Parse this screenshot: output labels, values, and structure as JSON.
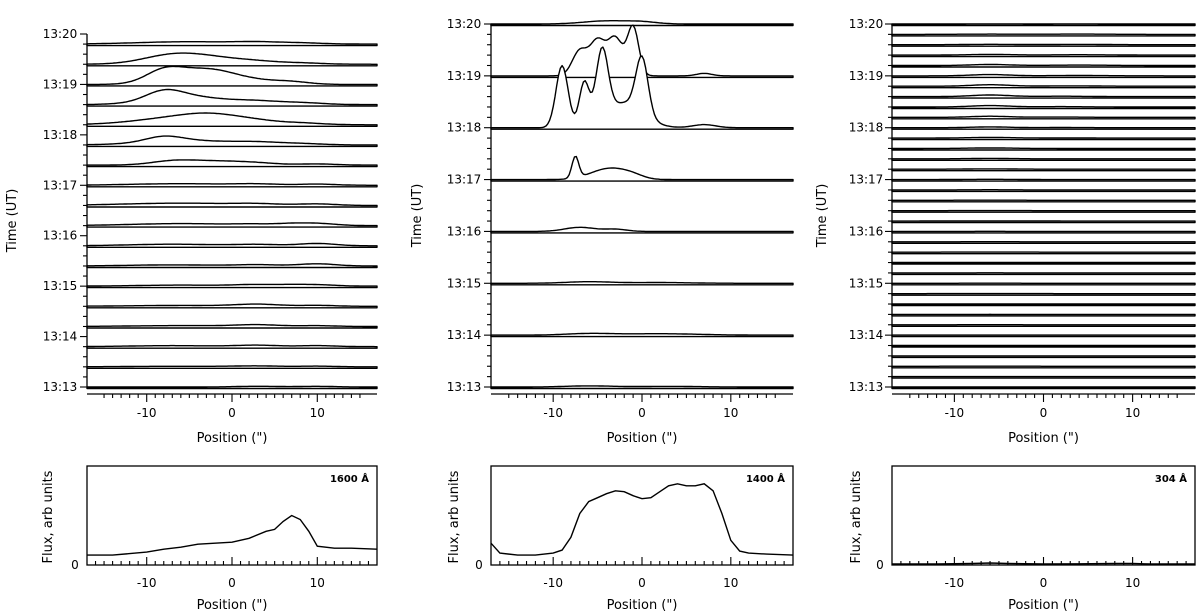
{
  "chart_data": [
    {
      "type": "line",
      "panel": "top-left",
      "ylabel": "Time (UT)",
      "xlabel": "Position (\")",
      "xlim": [
        -17,
        17
      ],
      "x_ticks": [
        "-10",
        "0",
        "10"
      ],
      "y_ticks": [
        "13:13",
        "13:14",
        "13:15",
        "13:16",
        "13:17",
        "13:18",
        "13:19",
        "13:20"
      ],
      "series": [
        {
          "t": 13.0,
          "peaks": [
            [
              3,
              1.0,
              6
            ],
            [
              10,
              0.9,
              5
            ]
          ]
        },
        {
          "t": 13.4,
          "peaks": [
            [
              -6,
              0.8,
              14
            ],
            [
              3,
              1.1,
              6
            ],
            [
              10,
              0.9,
              5
            ]
          ]
        },
        {
          "t": 13.8,
          "peaks": [
            [
              -7,
              1.4,
              12
            ],
            [
              3,
              1.9,
              6
            ],
            [
              10,
              1.4,
              5
            ]
          ]
        },
        {
          "t": 14.2,
          "peaks": [
            [
              -6,
              1.2,
              14
            ],
            [
              3,
              2.2,
              6
            ],
            [
              10,
              1.1,
              5
            ]
          ]
        },
        {
          "t": 14.6,
          "peaks": [
            [
              -6,
              1.2,
              14
            ],
            [
              3,
              2.7,
              6
            ],
            [
              10,
              1.3,
              5
            ]
          ]
        },
        {
          "t": 15.0,
          "peaks": [
            [
              -6,
              1.4,
              12
            ],
            [
              3,
              2.1,
              6
            ],
            [
              7,
              1.2,
              4
            ],
            [
              10,
              1.9,
              5
            ]
          ]
        },
        {
          "t": 15.4,
          "peaks": [
            [
              -7,
              1.5,
              12
            ],
            [
              3,
              1.7,
              6
            ],
            [
              10,
              3.0,
              5
            ]
          ]
        },
        {
          "t": 15.8,
          "peaks": [
            [
              -7,
              2.2,
              12
            ],
            [
              3,
              1.8,
              6
            ],
            [
              10,
              3.2,
              5
            ]
          ]
        },
        {
          "t": 16.2,
          "peaks": [
            [
              -6,
              2.8,
              14
            ],
            [
              3,
              1.6,
              6
            ],
            [
              7,
              1.8,
              4
            ],
            [
              10,
              3.0,
              5
            ]
          ]
        },
        {
          "t": 16.6,
          "peaks": [
            [
              -6,
              3.2,
              16
            ],
            [
              3,
              1.6,
              6
            ],
            [
              10,
              2.0,
              5
            ]
          ]
        },
        {
          "t": 17.0,
          "peaks": [
            [
              -6,
              2.2,
              14
            ],
            [
              3,
              1.5,
              6
            ],
            [
              10,
              1.6,
              5
            ]
          ]
        },
        {
          "t": 17.4,
          "peaks": [
            [
              -7,
              5.0,
              6
            ],
            [
              -2,
              5.2,
              8
            ],
            [
              3,
              2.2,
              6
            ],
            [
              10,
              1.6,
              5
            ]
          ]
        },
        {
          "t": 17.8,
          "peaks": [
            [
              -8,
              7.2,
              5
            ],
            [
              -5,
              6.0,
              12
            ],
            [
              3,
              2.8,
              6
            ],
            [
              8,
              1.8,
              6
            ]
          ]
        },
        {
          "t": 18.2,
          "peaks": [
            [
              -6,
              9.8,
              12
            ],
            [
              -2,
              8.2,
              8
            ],
            [
              3,
              3.2,
              6
            ],
            [
              8,
              2.4,
              6
            ]
          ]
        },
        {
          "t": 18.6,
          "peaks": [
            [
              -8,
              12.0,
              5
            ],
            [
              -5,
              11.0,
              10
            ],
            [
              3,
              3.8,
              6
            ],
            [
              8,
              2.6,
              6
            ]
          ]
        },
        {
          "t": 19.0,
          "peaks": [
            [
              -8,
              15.0,
              5
            ],
            [
              -5,
              9.8,
              8
            ],
            [
              -2,
              13.6,
              7
            ],
            [
              3,
              3.9,
              6
            ],
            [
              7,
              3.4,
              5
            ]
          ]
        },
        {
          "t": 19.4,
          "peaks": [
            [
              -7,
              12.4,
              8
            ],
            [
              -2,
              7.2,
              8
            ],
            [
              3,
              2.9,
              6
            ],
            [
              8,
              1.8,
              6
            ]
          ]
        },
        {
          "t": 19.8,
          "peaks": [
            [
              -5,
              3.3,
              14
            ],
            [
              3,
              2.0,
              6
            ],
            [
              8,
              1.5,
              6
            ]
          ]
        }
      ],
      "flux_panel": {
        "label": "1600 Å",
        "ylabel": "Flux, arb units",
        "xlabel": "Position (\")",
        "y_tick": "0",
        "x_ticks": [
          "-10",
          "0",
          "10"
        ],
        "x": [
          -17,
          -14,
          -10,
          -8,
          -6,
          -4,
          -2,
          0,
          2,
          4,
          5,
          6,
          7,
          8,
          9,
          10,
          12,
          14,
          17
        ],
        "flux": [
          0.1,
          0.1,
          0.13,
          0.16,
          0.18,
          0.21,
          0.22,
          0.23,
          0.27,
          0.34,
          0.36,
          0.44,
          0.5,
          0.46,
          0.34,
          0.19,
          0.17,
          0.17,
          0.16
        ]
      }
    },
    {
      "type": "line",
      "panel": "top-middle",
      "ylabel": "Time (UT)",
      "xlabel": "Position (\")",
      "xlim": [
        -17,
        17
      ],
      "x_ticks": [
        "-10",
        "0",
        "10"
      ],
      "y_ticks": [
        "13:13",
        "13:14",
        "13:15",
        "13:16",
        "13:17",
        "13:18",
        "13:19",
        "13:20"
      ],
      "series": [
        {
          "t": 13.0,
          "peaks": [
            [
              -6,
              1.8,
              6
            ],
            [
              3,
              1.0,
              8
            ]
          ]
        },
        {
          "t": 14.0,
          "peaks": [
            [
              -6,
              2.5,
              6
            ],
            [
              2,
              2.3,
              10
            ]
          ]
        },
        {
          "t": 15.0,
          "peaks": [
            [
              -6,
              2.5,
              6
            ],
            [
              2,
              1.2,
              8
            ]
          ]
        },
        {
          "t": 16.0,
          "peaks": [
            [
              -7,
              6.6,
              4
            ],
            [
              -3,
              3.5,
              3
            ]
          ]
        },
        {
          "t": 17.0,
          "peaks": [
            [
              -7.5,
              35.0,
              0.9
            ],
            [
              -5,
              8.0,
              4
            ],
            [
              -3,
              13.0,
              4
            ],
            [
              -1,
              5.0,
              3
            ]
          ]
        },
        {
          "t": 18.0,
          "peaks": [
            [
              -9,
              100,
              1.6
            ],
            [
              -6.5,
              70,
              1.3
            ],
            [
              -4.5,
              110,
              1.6
            ],
            [
              -2,
              40,
              5
            ],
            [
              0,
              90,
              1.6
            ],
            [
              7,
              5.0,
              3
            ]
          ]
        },
        {
          "t": 19.0,
          "peaks": [
            [
              -7,
              40,
              2
            ],
            [
              -5,
              55,
              2
            ],
            [
              -3,
              60,
              2
            ],
            [
              -1,
              78,
              1.5
            ],
            [
              7,
              4.0,
              2
            ]
          ]
        },
        {
          "t": 20.0,
          "peaks": [
            [
              -4,
              5.0,
              6
            ],
            [
              0,
              3.0,
              4
            ]
          ]
        }
      ],
      "flux_panel": {
        "label": "1400 Å",
        "ylabel": "Flux, arb units",
        "xlabel": "Position (\")",
        "y_tick": "0",
        "x_ticks": [
          "-10",
          "0",
          "10"
        ],
        "x": [
          -17,
          -16,
          -14,
          -12,
          -10,
          -9,
          -8,
          -7,
          -6,
          -5,
          -4,
          -3,
          -2,
          -1,
          0,
          1,
          2,
          3,
          4,
          5,
          6,
          7,
          8,
          9,
          10,
          11,
          12,
          14,
          17
        ],
        "flux": [
          0.22,
          0.12,
          0.1,
          0.1,
          0.12,
          0.15,
          0.28,
          0.52,
          0.64,
          0.68,
          0.72,
          0.75,
          0.74,
          0.7,
          0.67,
          0.68,
          0.74,
          0.8,
          0.82,
          0.8,
          0.8,
          0.82,
          0.75,
          0.52,
          0.25,
          0.14,
          0.12,
          0.11,
          0.1
        ]
      }
    },
    {
      "type": "line",
      "panel": "top-right",
      "ylabel": "Time (UT)",
      "xlabel": "Position (\")",
      "xlim": [
        -17,
        17
      ],
      "x_ticks": [
        "-10",
        "0",
        "10"
      ],
      "y_ticks": [
        "13:13",
        "13:14",
        "13:15",
        "13:16",
        "13:17",
        "13:18",
        "13:19",
        "13:20"
      ],
      "series": [
        {
          "t": 13.0,
          "peaks": [
            [
              -6,
              0.2,
              8
            ]
          ]
        },
        {
          "t": 13.2,
          "peaks": [
            [
              -6,
              0.2,
              8
            ]
          ]
        },
        {
          "t": 13.4,
          "peaks": [
            [
              -6,
              0.3,
              8
            ]
          ]
        },
        {
          "t": 13.6,
          "peaks": [
            [
              -6,
              0.3,
              8
            ]
          ]
        },
        {
          "t": 13.8,
          "peaks": [
            [
              -6,
              0.3,
              8
            ]
          ]
        },
        {
          "t": 14.0,
          "peaks": [
            [
              -6,
              0.4,
              8
            ]
          ]
        },
        {
          "t": 14.2,
          "peaks": [
            [
              -6,
              0.4,
              8
            ]
          ]
        },
        {
          "t": 14.4,
          "peaks": [
            [
              -6,
              0.5,
              8
            ]
          ]
        },
        {
          "t": 14.6,
          "peaks": [
            [
              -6,
              0.5,
              8
            ]
          ]
        },
        {
          "t": 14.8,
          "peaks": [
            [
              -6,
              0.6,
              8
            ]
          ]
        },
        {
          "t": 15.0,
          "peaks": [
            [
              -6,
              0.6,
              8
            ]
          ]
        },
        {
          "t": 15.2,
          "peaks": [
            [
              -6,
              0.7,
              8
            ]
          ]
        },
        {
          "t": 15.4,
          "peaks": [
            [
              -6,
              0.7,
              8
            ]
          ]
        },
        {
          "t": 15.6,
          "peaks": [
            [
              -6,
              0.8,
              8
            ]
          ]
        },
        {
          "t": 15.8,
          "peaks": [
            [
              -6,
              0.8,
              8
            ]
          ]
        },
        {
          "t": 16.0,
          "peaks": [
            [
              -6,
              0.9,
              8
            ]
          ]
        },
        {
          "t": 16.2,
          "peaks": [
            [
              -6,
              1.0,
              8
            ]
          ]
        },
        {
          "t": 16.4,
          "peaks": [
            [
              -6,
              1.3,
              7
            ]
          ]
        },
        {
          "t": 16.6,
          "peaks": [
            [
              -6,
              1.6,
              7
            ]
          ]
        },
        {
          "t": 16.8,
          "peaks": [
            [
              -6,
              2.0,
              7
            ]
          ]
        },
        {
          "t": 17.0,
          "peaks": [
            [
              -6,
              2.6,
              6
            ]
          ]
        },
        {
          "t": 17.2,
          "peaks": [
            [
              -6,
              3.3,
              6
            ]
          ]
        },
        {
          "t": 17.4,
          "peaks": [
            [
              -6,
              4.0,
              6
            ]
          ]
        },
        {
          "t": 17.6,
          "peaks": [
            [
              -6,
              5.0,
              6
            ]
          ]
        },
        {
          "t": 17.8,
          "peaks": [
            [
              -6,
              6.2,
              6
            ],
            [
              2,
              1.2,
              6
            ]
          ]
        },
        {
          "t": 18.0,
          "peaks": [
            [
              -6,
              8.0,
              5
            ],
            [
              2,
              1.8,
              6
            ]
          ]
        },
        {
          "t": 18.2,
          "peaks": [
            [
              -6,
              11.0,
              5
            ],
            [
              2,
              2.6,
              6
            ]
          ]
        },
        {
          "t": 18.4,
          "peaks": [
            [
              -6,
              14.0,
              5
            ],
            [
              2,
              3.3,
              6
            ]
          ]
        },
        {
          "t": 18.6,
          "peaks": [
            [
              -6,
              16.0,
              5
            ],
            [
              2,
              3.8,
              6
            ]
          ]
        },
        {
          "t": 18.8,
          "peaks": [
            [
              -6,
              15.0,
              5
            ],
            [
              3,
              3.6,
              7
            ]
          ]
        },
        {
          "t": 19.0,
          "peaks": [
            [
              -6,
              13.0,
              5
            ],
            [
              4,
              3.4,
              8
            ]
          ]
        },
        {
          "t": 19.2,
          "peaks": [
            [
              -6,
              10.0,
              5
            ],
            [
              4,
              3.6,
              8
            ]
          ]
        },
        {
          "t": 19.4,
          "peaks": [
            [
              -6,
              6.5,
              6
            ],
            [
              4,
              3.8,
              8
            ]
          ]
        },
        {
          "t": 19.6,
          "peaks": [
            [
              -6,
              4.0,
              7
            ],
            [
              4,
              3.4,
              8
            ]
          ]
        },
        {
          "t": 19.8,
          "peaks": [
            [
              -6,
              2.2,
              8
            ],
            [
              4,
              2.5,
              8
            ]
          ]
        },
        {
          "t": 20.0,
          "peaks": [
            [
              -6,
              0.7,
              8
            ],
            [
              4,
              0.6,
              8
            ]
          ]
        }
      ],
      "flux_panel": {
        "label": "304 Å",
        "ylabel": "Flux, arb units",
        "xlabel": "Position (\")",
        "y_tick": "0",
        "x_ticks": [
          "-10",
          "0",
          "10"
        ],
        "x": [
          -17,
          -12,
          -8,
          -6,
          -4,
          0,
          4,
          8,
          10,
          12,
          17
        ],
        "flux": [
          0.01,
          0.01,
          0.015,
          0.02,
          0.015,
          0.01,
          0.012,
          0.015,
          0.015,
          0.01,
          0.01
        ]
      }
    }
  ]
}
